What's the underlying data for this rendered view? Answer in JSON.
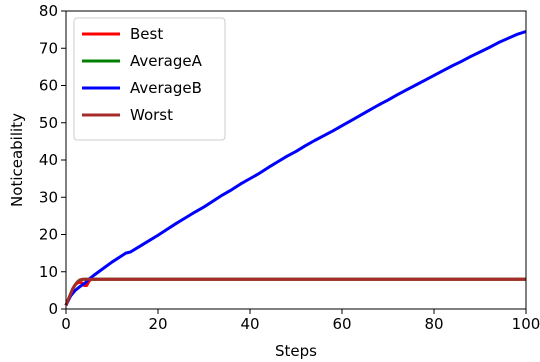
{
  "chart_data": {
    "type": "line",
    "xlabel": "Steps",
    "ylabel": "Noticeability",
    "xlim": [
      0,
      100
    ],
    "ylim": [
      0,
      80
    ],
    "x_ticks": [
      0,
      20,
      40,
      60,
      80,
      100
    ],
    "y_ticks": [
      0,
      10,
      20,
      30,
      40,
      50,
      60,
      70,
      80
    ],
    "x_tick_labels": [
      "0",
      "20",
      "40",
      "60",
      "80",
      "100"
    ],
    "y_tick_labels": [
      "0",
      "10",
      "20",
      "30",
      "40",
      "50",
      "60",
      "70",
      "80"
    ],
    "legend_position": "top-left",
    "grid": false,
    "series": [
      {
        "name": "Best",
        "color": "#ff0000",
        "x": [
          0,
          0.5,
          1,
          1.5,
          2,
          2.5,
          3,
          3.5,
          4,
          4.5,
          5,
          5.5,
          6,
          100
        ],
        "y": [
          1.0,
          2.5,
          4.0,
          5.5,
          6.5,
          7.0,
          7.2,
          7.0,
          6.3,
          6.3,
          7.5,
          8.0,
          8.0,
          8.0
        ]
      },
      {
        "name": "AverageA",
        "color": "#008000",
        "x": [
          0,
          0.5,
          1,
          1.5,
          2,
          2.5,
          3,
          4,
          5,
          6,
          100
        ],
        "y": [
          1.0,
          2.5,
          4.0,
          5.5,
          6.5,
          7.3,
          7.8,
          8.0,
          8.0,
          8.0,
          8.0
        ]
      },
      {
        "name": "AverageB",
        "color": "#0000ff",
        "x": [
          0,
          1,
          2,
          3,
          4,
          5,
          6,
          8,
          10,
          12,
          13,
          14,
          16,
          18,
          20,
          22,
          24,
          26,
          28,
          30,
          32,
          34,
          36,
          38,
          40,
          42,
          44,
          46,
          48,
          50,
          52,
          54,
          56,
          58,
          60,
          62,
          64,
          66,
          68,
          70,
          72,
          74,
          76,
          78,
          80,
          82,
          84,
          86,
          88,
          90,
          92,
          94,
          96,
          98,
          100
        ],
        "y": [
          1.0,
          3.5,
          5.0,
          6.0,
          6.8,
          8.0,
          9.0,
          10.8,
          12.6,
          14.2,
          15.0,
          15.3,
          16.8,
          18.3,
          19.8,
          21.4,
          23.0,
          24.5,
          26.0,
          27.4,
          29.0,
          30.6,
          32.0,
          33.6,
          35.0,
          36.4,
          38.0,
          39.5,
          41.0,
          42.3,
          43.8,
          45.2,
          46.5,
          47.8,
          49.2,
          50.6,
          52.0,
          53.4,
          54.8,
          56.1,
          57.5,
          58.8,
          60.1,
          61.4,
          62.7,
          64.0,
          65.3,
          66.5,
          67.8,
          69.0,
          70.2,
          71.5,
          72.6,
          73.7,
          74.5
        ]
      },
      {
        "name": "Worst",
        "color": "#a52a2a",
        "x": [
          0,
          0.5,
          1,
          1.5,
          2,
          2.5,
          3,
          3.5,
          4,
          5,
          6,
          100
        ],
        "y": [
          1.0,
          2.5,
          4.0,
          5.5,
          6.5,
          7.2,
          7.7,
          8.0,
          8.0,
          8.0,
          8.0,
          8.0
        ]
      }
    ]
  }
}
